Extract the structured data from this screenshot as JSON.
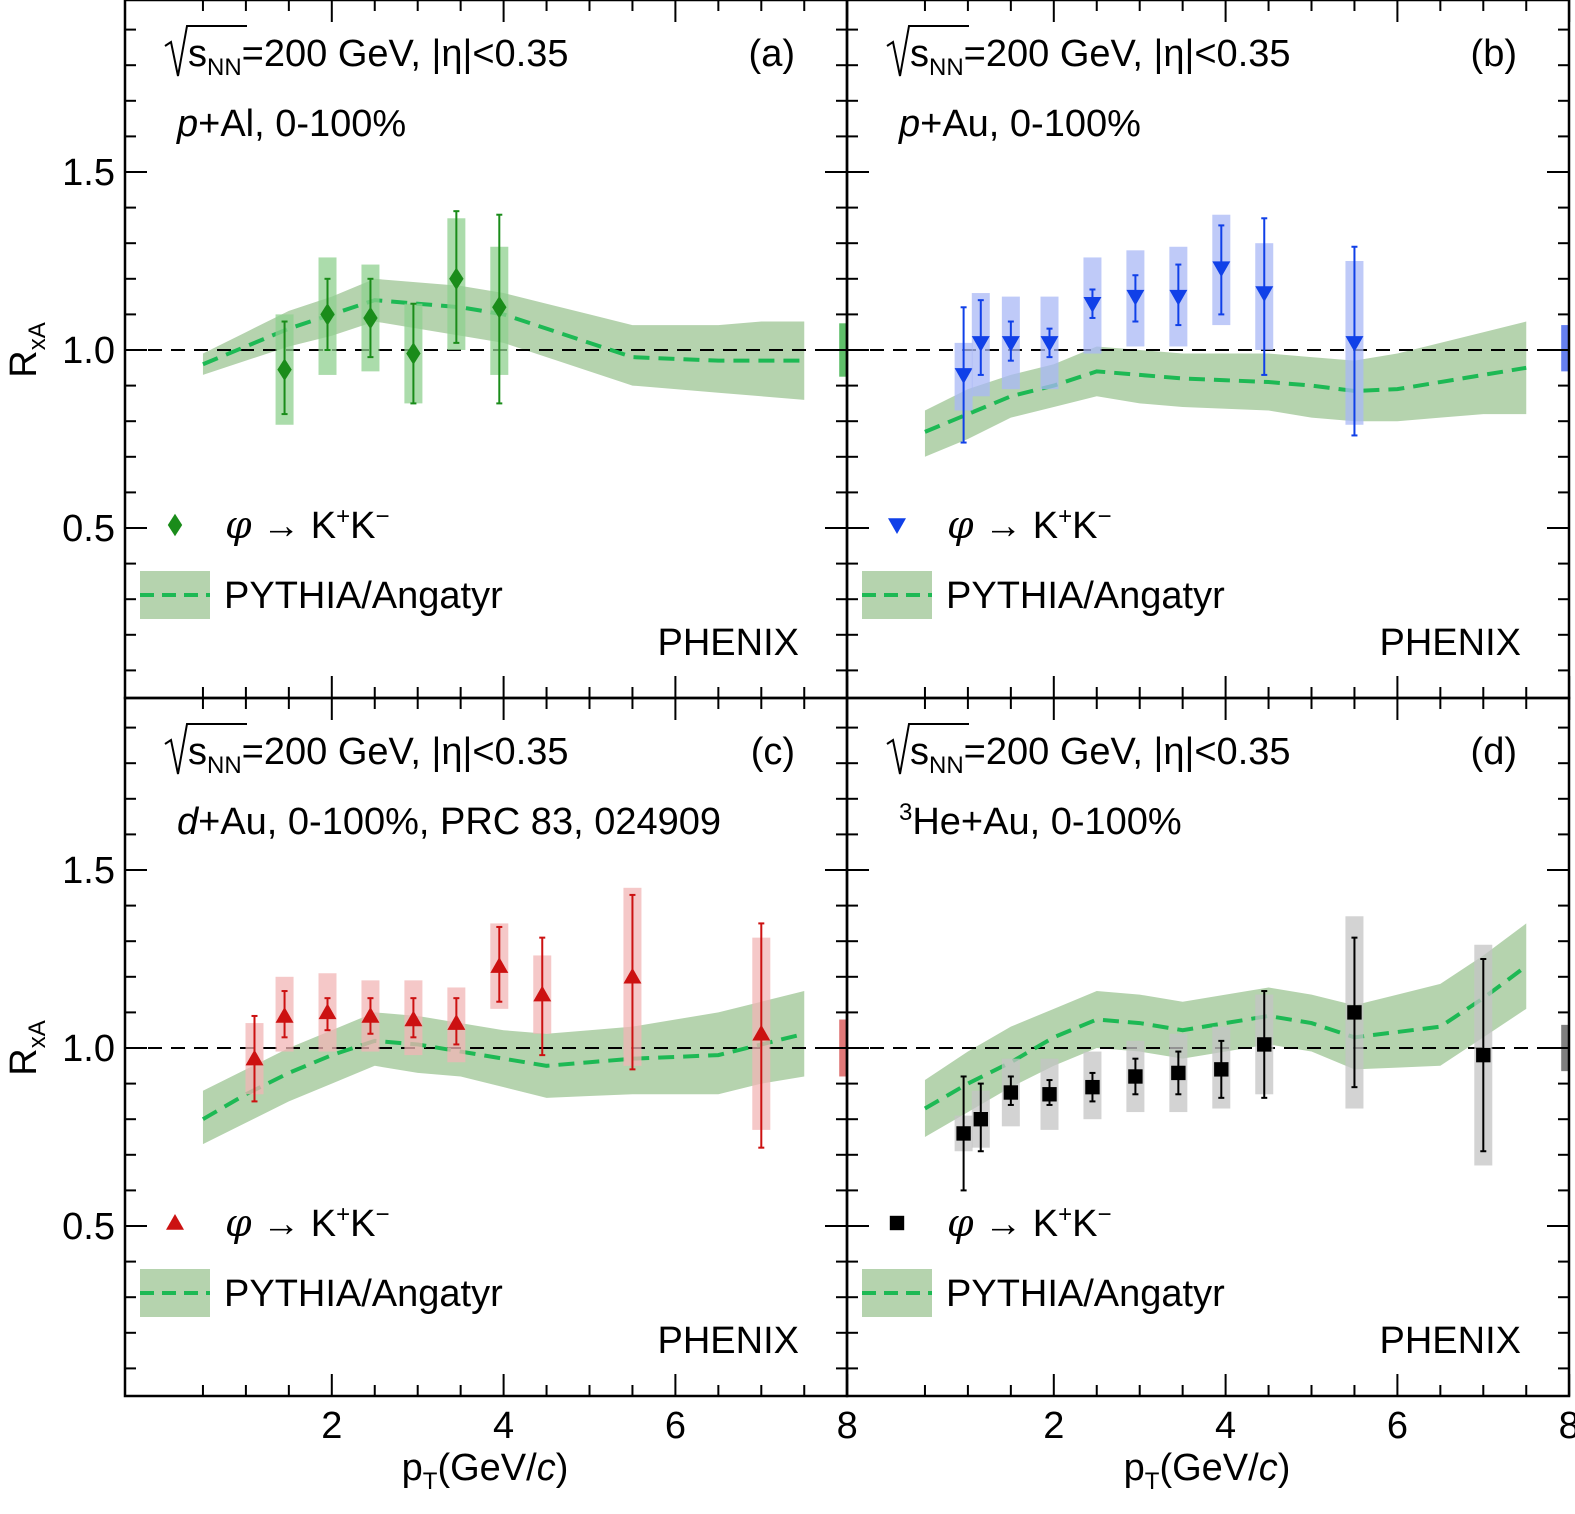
{
  "figure": {
    "y_axis_label": "R",
    "y_axis_label_sub": "xA",
    "x_axis_label_main": "p",
    "x_axis_label_sub": "T",
    "x_axis_label_unit_pre": "(GeV/",
    "x_axis_label_unit_c": "c",
    "x_axis_label_unit_post": ")",
    "y_tick_labels": [
      "0.5",
      "1.0",
      "1.5"
    ],
    "x_tick_labels": [
      "2",
      "4",
      "6",
      "8"
    ],
    "legend_model": "PYTHIA/Angatyr",
    "experiment": "PHENIX",
    "energy_text_s": "s",
    "energy_text_sub": "NN",
    "energy_text_rest": "=200 GeV, |η|<0.35",
    "decay_phi": "φ",
    "decay_arrow": "→",
    "decay_K": "K",
    "decay_plus": "+",
    "decay_minus": "−",
    "colors": {
      "model_band": "#b5d3ae",
      "model_line": "#1db954",
      "reference_line": "#000000"
    }
  },
  "chart_data": [
    {
      "type": "scatter",
      "panel": "(a)",
      "system_italic": "p",
      "system_rest": "+Al, 0-100%",
      "system_sup": "",
      "marker": "diamond",
      "color": "#1a8c1a",
      "syst_color": "#8fd08f",
      "global_color": "#5fbe6a",
      "global_unc": [
        0.925,
        1.075
      ],
      "xlim": [
        0,
        8.5
      ],
      "ylim": [
        0,
        2.0
      ],
      "reference_y": 1.0,
      "points": [
        {
          "x": 1.45,
          "y": 0.945,
          "stat": [
            0.82,
            1.08
          ],
          "syst": [
            0.79,
            1.1
          ]
        },
        {
          "x": 1.95,
          "y": 1.1,
          "stat": [
            1.0,
            1.2
          ],
          "syst": [
            0.93,
            1.26
          ]
        },
        {
          "x": 2.45,
          "y": 1.09,
          "stat": [
            0.98,
            1.2
          ],
          "syst": [
            0.94,
            1.24
          ]
        },
        {
          "x": 2.95,
          "y": 0.99,
          "stat": [
            0.85,
            1.13
          ],
          "syst": [
            0.85,
            1.13
          ]
        },
        {
          "x": 3.45,
          "y": 1.2,
          "stat": [
            1.02,
            1.39
          ],
          "syst": [
            1.0,
            1.37
          ]
        },
        {
          "x": 3.95,
          "y": 1.12,
          "stat": [
            0.85,
            1.38
          ],
          "syst": [
            0.93,
            1.29
          ]
        }
      ],
      "model": {
        "x": [
          0.5,
          1.0,
          1.5,
          2.0,
          2.5,
          3.0,
          3.5,
          4.0,
          4.5,
          5.0,
          5.5,
          6.0,
          6.5,
          7.0,
          7.5
        ],
        "y": [
          0.96,
          1.01,
          1.06,
          1.1,
          1.14,
          1.13,
          1.12,
          1.1,
          1.06,
          1.02,
          0.98,
          0.975,
          0.97,
          0.97,
          0.97
        ],
        "lo": [
          0.93,
          0.97,
          1.01,
          1.04,
          1.08,
          1.06,
          1.04,
          1.02,
          0.98,
          0.94,
          0.9,
          0.89,
          0.88,
          0.87,
          0.86
        ],
        "hi": [
          0.99,
          1.05,
          1.11,
          1.15,
          1.2,
          1.19,
          1.18,
          1.16,
          1.13,
          1.1,
          1.07,
          1.07,
          1.07,
          1.08,
          1.08
        ]
      }
    },
    {
      "type": "scatter",
      "panel": "(b)",
      "system_italic": "p",
      "system_rest": "+Au, 0-100%",
      "system_sup": "",
      "marker": "triangle-down",
      "color": "#1040e8",
      "syst_color": "#a9b8f5",
      "global_color": "#6680f0",
      "global_unc": [
        0.94,
        1.07
      ],
      "xlim": [
        0,
        8.5
      ],
      "ylim": [
        0,
        2.0
      ],
      "reference_y": 1.0,
      "points": [
        {
          "x": 0.95,
          "y": 0.93,
          "stat": [
            0.74,
            1.12
          ],
          "syst": [
            0.83,
            1.02
          ]
        },
        {
          "x": 1.15,
          "y": 1.02,
          "stat": [
            0.93,
            1.14
          ],
          "syst": [
            0.87,
            1.16
          ]
        },
        {
          "x": 1.5,
          "y": 1.02,
          "stat": [
            0.97,
            1.08
          ],
          "syst": [
            0.89,
            1.15
          ]
        },
        {
          "x": 1.95,
          "y": 1.02,
          "stat": [
            0.98,
            1.06
          ],
          "syst": [
            0.89,
            1.15
          ]
        },
        {
          "x": 2.45,
          "y": 1.13,
          "stat": [
            1.09,
            1.17
          ],
          "syst": [
            0.99,
            1.26
          ]
        },
        {
          "x": 2.95,
          "y": 1.15,
          "stat": [
            1.08,
            1.21
          ],
          "syst": [
            1.01,
            1.28
          ]
        },
        {
          "x": 3.45,
          "y": 1.15,
          "stat": [
            1.07,
            1.24
          ],
          "syst": [
            1.01,
            1.29
          ]
        },
        {
          "x": 3.95,
          "y": 1.23,
          "stat": [
            1.1,
            1.35
          ],
          "syst": [
            1.07,
            1.38
          ]
        },
        {
          "x": 4.45,
          "y": 1.16,
          "stat": [
            0.93,
            1.37
          ],
          "syst": [
            1.0,
            1.3
          ]
        },
        {
          "x": 5.5,
          "y": 1.02,
          "stat": [
            0.76,
            1.29
          ],
          "syst": [
            0.79,
            1.25
          ]
        }
      ],
      "model": {
        "x": [
          0.5,
          1.0,
          1.5,
          2.0,
          2.5,
          3.0,
          3.5,
          4.0,
          4.5,
          5.0,
          5.5,
          6.0,
          6.5,
          7.0,
          7.5
        ],
        "y": [
          0.77,
          0.82,
          0.87,
          0.9,
          0.94,
          0.93,
          0.92,
          0.915,
          0.91,
          0.9,
          0.885,
          0.89,
          0.91,
          0.93,
          0.95
        ],
        "lo": [
          0.7,
          0.75,
          0.81,
          0.84,
          0.87,
          0.85,
          0.84,
          0.835,
          0.83,
          0.81,
          0.8,
          0.8,
          0.81,
          0.82,
          0.82
        ],
        "hi": [
          0.83,
          0.89,
          0.93,
          0.96,
          1.01,
          1.0,
          0.99,
          0.99,
          0.99,
          0.98,
          0.97,
          0.99,
          1.02,
          1.05,
          1.08
        ]
      }
    },
    {
      "type": "scatter",
      "panel": "(c)",
      "system_italic": "d",
      "system_rest": "+Au, 0-100%, PRC 83, 024909",
      "system_sup": "",
      "marker": "triangle-up",
      "color": "#cc1111",
      "syst_color": "#f2b5b5",
      "global_color": "#e07878",
      "global_unc": [
        0.92,
        1.08
      ],
      "xlim": [
        0,
        8.5
      ],
      "ylim": [
        0,
        2.0
      ],
      "reference_y": 1.0,
      "points": [
        {
          "x": 1.1,
          "y": 0.97,
          "stat": [
            0.85,
            1.09
          ],
          "syst": [
            0.87,
            1.07
          ]
        },
        {
          "x": 1.45,
          "y": 1.09,
          "stat": [
            1.03,
            1.16
          ],
          "syst": [
            0.99,
            1.2
          ]
        },
        {
          "x": 1.95,
          "y": 1.1,
          "stat": [
            1.05,
            1.14
          ],
          "syst": [
            0.99,
            1.21
          ]
        },
        {
          "x": 2.45,
          "y": 1.09,
          "stat": [
            1.04,
            1.14
          ],
          "syst": [
            0.99,
            1.19
          ]
        },
        {
          "x": 2.95,
          "y": 1.08,
          "stat": [
            1.03,
            1.14
          ],
          "syst": [
            0.98,
            1.19
          ]
        },
        {
          "x": 3.45,
          "y": 1.07,
          "stat": [
            1.01,
            1.14
          ],
          "syst": [
            0.96,
            1.17
          ]
        },
        {
          "x": 3.95,
          "y": 1.23,
          "stat": [
            1.13,
            1.34
          ],
          "syst": [
            1.11,
            1.35
          ]
        },
        {
          "x": 4.45,
          "y": 1.15,
          "stat": [
            0.98,
            1.31
          ],
          "syst": [
            1.04,
            1.26
          ]
        },
        {
          "x": 5.5,
          "y": 1.2,
          "stat": [
            0.94,
            1.43
          ],
          "syst": [
            0.95,
            1.45
          ]
        },
        {
          "x": 7.0,
          "y": 1.04,
          "stat": [
            0.72,
            1.35
          ],
          "syst": [
            0.77,
            1.31
          ]
        }
      ],
      "model": {
        "x": [
          0.5,
          1.0,
          1.5,
          2.0,
          2.5,
          3.0,
          3.5,
          4.0,
          4.5,
          5.0,
          5.5,
          6.0,
          6.5,
          7.0,
          7.5
        ],
        "y": [
          0.8,
          0.87,
          0.93,
          0.98,
          1.02,
          1.01,
          0.99,
          0.97,
          0.95,
          0.96,
          0.97,
          0.975,
          0.98,
          1.01,
          1.04
        ],
        "lo": [
          0.73,
          0.79,
          0.85,
          0.9,
          0.95,
          0.93,
          0.92,
          0.89,
          0.86,
          0.865,
          0.87,
          0.87,
          0.87,
          0.9,
          0.92
        ],
        "hi": [
          0.88,
          0.94,
          1.0,
          1.05,
          1.1,
          1.09,
          1.07,
          1.05,
          1.04,
          1.05,
          1.06,
          1.08,
          1.1,
          1.13,
          1.16
        ]
      }
    },
    {
      "type": "scatter",
      "panel": "(d)",
      "system_italic": "",
      "system_sup": "3",
      "system_rest": "He+Au, 0-100%",
      "marker": "square",
      "color": "#000000",
      "syst_color": "#c4c4c4",
      "global_color": "#808080",
      "global_unc": [
        0.935,
        1.065
      ],
      "xlim": [
        0,
        8.5
      ],
      "ylim": [
        0,
        2.0
      ],
      "reference_y": 1.0,
      "points": [
        {
          "x": 0.95,
          "y": 0.76,
          "stat": [
            0.6,
            0.92
          ],
          "syst": [
            0.71,
            0.81
          ]
        },
        {
          "x": 1.15,
          "y": 0.8,
          "stat": [
            0.71,
            0.9
          ],
          "syst": [
            0.72,
            0.88
          ]
        },
        {
          "x": 1.5,
          "y": 0.875,
          "stat": [
            0.84,
            0.92
          ],
          "syst": [
            0.78,
            0.97
          ]
        },
        {
          "x": 1.95,
          "y": 0.87,
          "stat": [
            0.84,
            0.91
          ],
          "syst": [
            0.77,
            0.97
          ]
        },
        {
          "x": 2.45,
          "y": 0.89,
          "stat": [
            0.85,
            0.93
          ],
          "syst": [
            0.8,
            0.99
          ]
        },
        {
          "x": 2.95,
          "y": 0.92,
          "stat": [
            0.87,
            0.97
          ],
          "syst": [
            0.82,
            1.02
          ]
        },
        {
          "x": 3.45,
          "y": 0.93,
          "stat": [
            0.87,
            0.99
          ],
          "syst": [
            0.82,
            1.04
          ]
        },
        {
          "x": 3.95,
          "y": 0.94,
          "stat": [
            0.86,
            1.02
          ],
          "syst": [
            0.83,
            1.06
          ]
        },
        {
          "x": 4.45,
          "y": 1.01,
          "stat": [
            0.86,
            1.16
          ],
          "syst": [
            0.87,
            1.15
          ]
        },
        {
          "x": 5.5,
          "y": 1.1,
          "stat": [
            0.89,
            1.31
          ],
          "syst": [
            0.83,
            1.37
          ]
        },
        {
          "x": 7.0,
          "y": 0.98,
          "stat": [
            0.71,
            1.25
          ],
          "syst": [
            0.67,
            1.29
          ]
        }
      ],
      "model": {
        "x": [
          0.5,
          1.0,
          1.5,
          2.0,
          2.5,
          3.0,
          3.5,
          4.0,
          4.5,
          5.0,
          5.5,
          6.0,
          6.5,
          7.0,
          7.5
        ],
        "y": [
          0.83,
          0.9,
          0.96,
          1.03,
          1.08,
          1.07,
          1.05,
          1.07,
          1.09,
          1.07,
          1.03,
          1.045,
          1.06,
          1.14,
          1.23
        ],
        "lo": [
          0.75,
          0.82,
          0.89,
          0.95,
          1.0,
          0.99,
          0.97,
          0.99,
          1.01,
          0.99,
          0.94,
          0.945,
          0.95,
          1.03,
          1.11
        ],
        "hi": [
          0.91,
          0.99,
          1.06,
          1.11,
          1.16,
          1.15,
          1.13,
          1.15,
          1.17,
          1.15,
          1.12,
          1.15,
          1.18,
          1.26,
          1.35
        ]
      }
    }
  ]
}
